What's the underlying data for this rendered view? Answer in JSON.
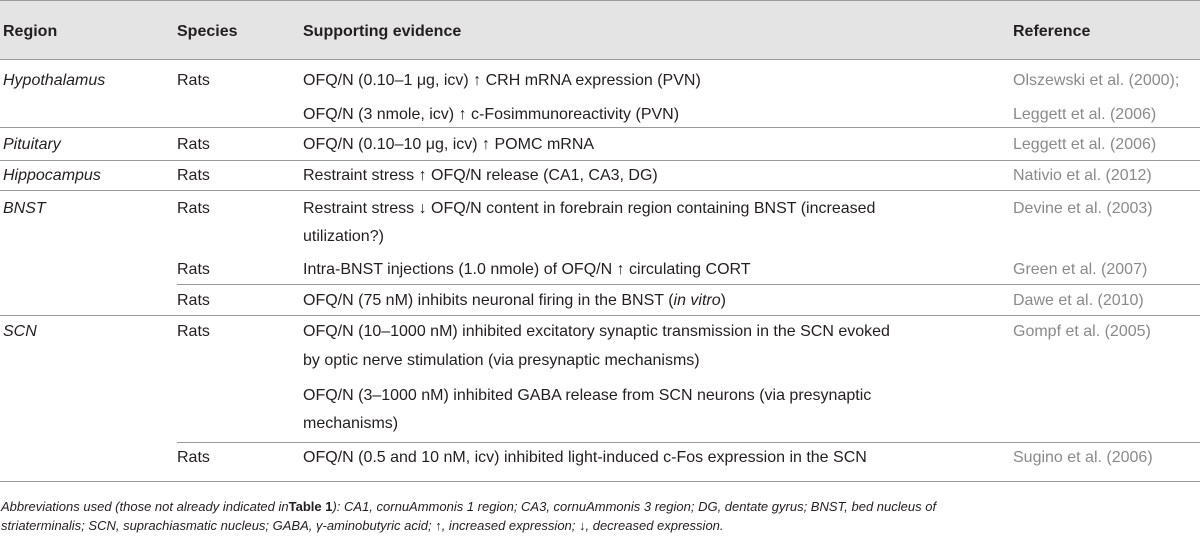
{
  "table": {
    "headers": {
      "region": "Region",
      "species": "Species",
      "evidence": "Supporting evidence",
      "reference": "Reference"
    },
    "rows": [
      {
        "region": "Hypothalamus",
        "species": "Rats",
        "evidence_prefix": "OFQ/N (0.10–1 ",
        "evidence_unit": "μ",
        "evidence_suffix": "g, icv) ↑ CRH mRNA expression (PVN)",
        "reference": "Olszewski et al. (2000);"
      },
      {
        "region": "",
        "species": "",
        "evidence": "OFQ/N (3 nmole, icv) ↑ c-Fosimmunoreactivity (PVN)",
        "reference": "Leggett et al. (2006)"
      },
      {
        "region": "Pituitary",
        "species": "Rats",
        "evidence_prefix": "OFQ/N (0.10–10 ",
        "evidence_unit": "μ",
        "evidence_suffix": "g, icv) ↑ POMC mRNA",
        "reference": "Leggett et al. (2006)"
      },
      {
        "region": "Hippocampus",
        "species": "Rats",
        "evidence": "Restraint stress ↑ OFQ/N release (CA1, CA3, DG)",
        "reference": "Nativio et al. (2012)"
      },
      {
        "region": "BNST",
        "species": "Rats",
        "evidence_line1": "Restraint stress ↓ OFQ/N content in forebrain region containing BNST (increased",
        "evidence_line2": "utilization?)",
        "reference": "Devine et al. (2003)"
      },
      {
        "region": "",
        "species": "Rats",
        "evidence": "Intra-BNST injections (1.0 nmole) of OFQ/N ↑ circulating CORT",
        "reference": "Green et al. (2007)"
      },
      {
        "region": "",
        "species": "Rats",
        "evidence_prefix": "OFQ/N (75 nM) inhibits neuronal firing in the BNST (",
        "evidence_italic": "in vitro",
        "evidence_suffix": ")",
        "reference": "Dawe et al. (2010)"
      },
      {
        "region": "SCN",
        "species": "Rats",
        "evidence_line1": "OFQ/N (10–1000 nM) inhibited excitatory synaptic transmission in the SCN evoked",
        "evidence_line2": "by optic nerve stimulation (via presynaptic mechanisms)",
        "reference": "Gompf et al. (2005)"
      },
      {
        "region": "",
        "species": "",
        "evidence_line1": "OFQ/N (3–1000 nM) inhibited GABA release from SCN neurons (via presynaptic",
        "evidence_line2": "mechanisms)",
        "reference": ""
      },
      {
        "region": "",
        "species": "Rats",
        "evidence": "OFQ/N (0.5 and 10 nM, icv) inhibited light-induced c-Fos expression in the SCN",
        "reference": "Sugino et al. (2006)"
      }
    ]
  },
  "footnote": {
    "line1_prefix": "Abbreviations used (those not already indicated in",
    "line1_table_ref": "Table 1",
    "line1_suffix": "): CA1, cornuAmmonis 1 region; CA3, cornuAmmonis 3 region; DG, dentate gyrus; BNST, bed nucleus of",
    "line2": "striaterminalis; SCN, suprachiasmatic nucleus; GABA, γ-aminobutyric acid; ↑, increased expression; ↓, decreased expression."
  }
}
